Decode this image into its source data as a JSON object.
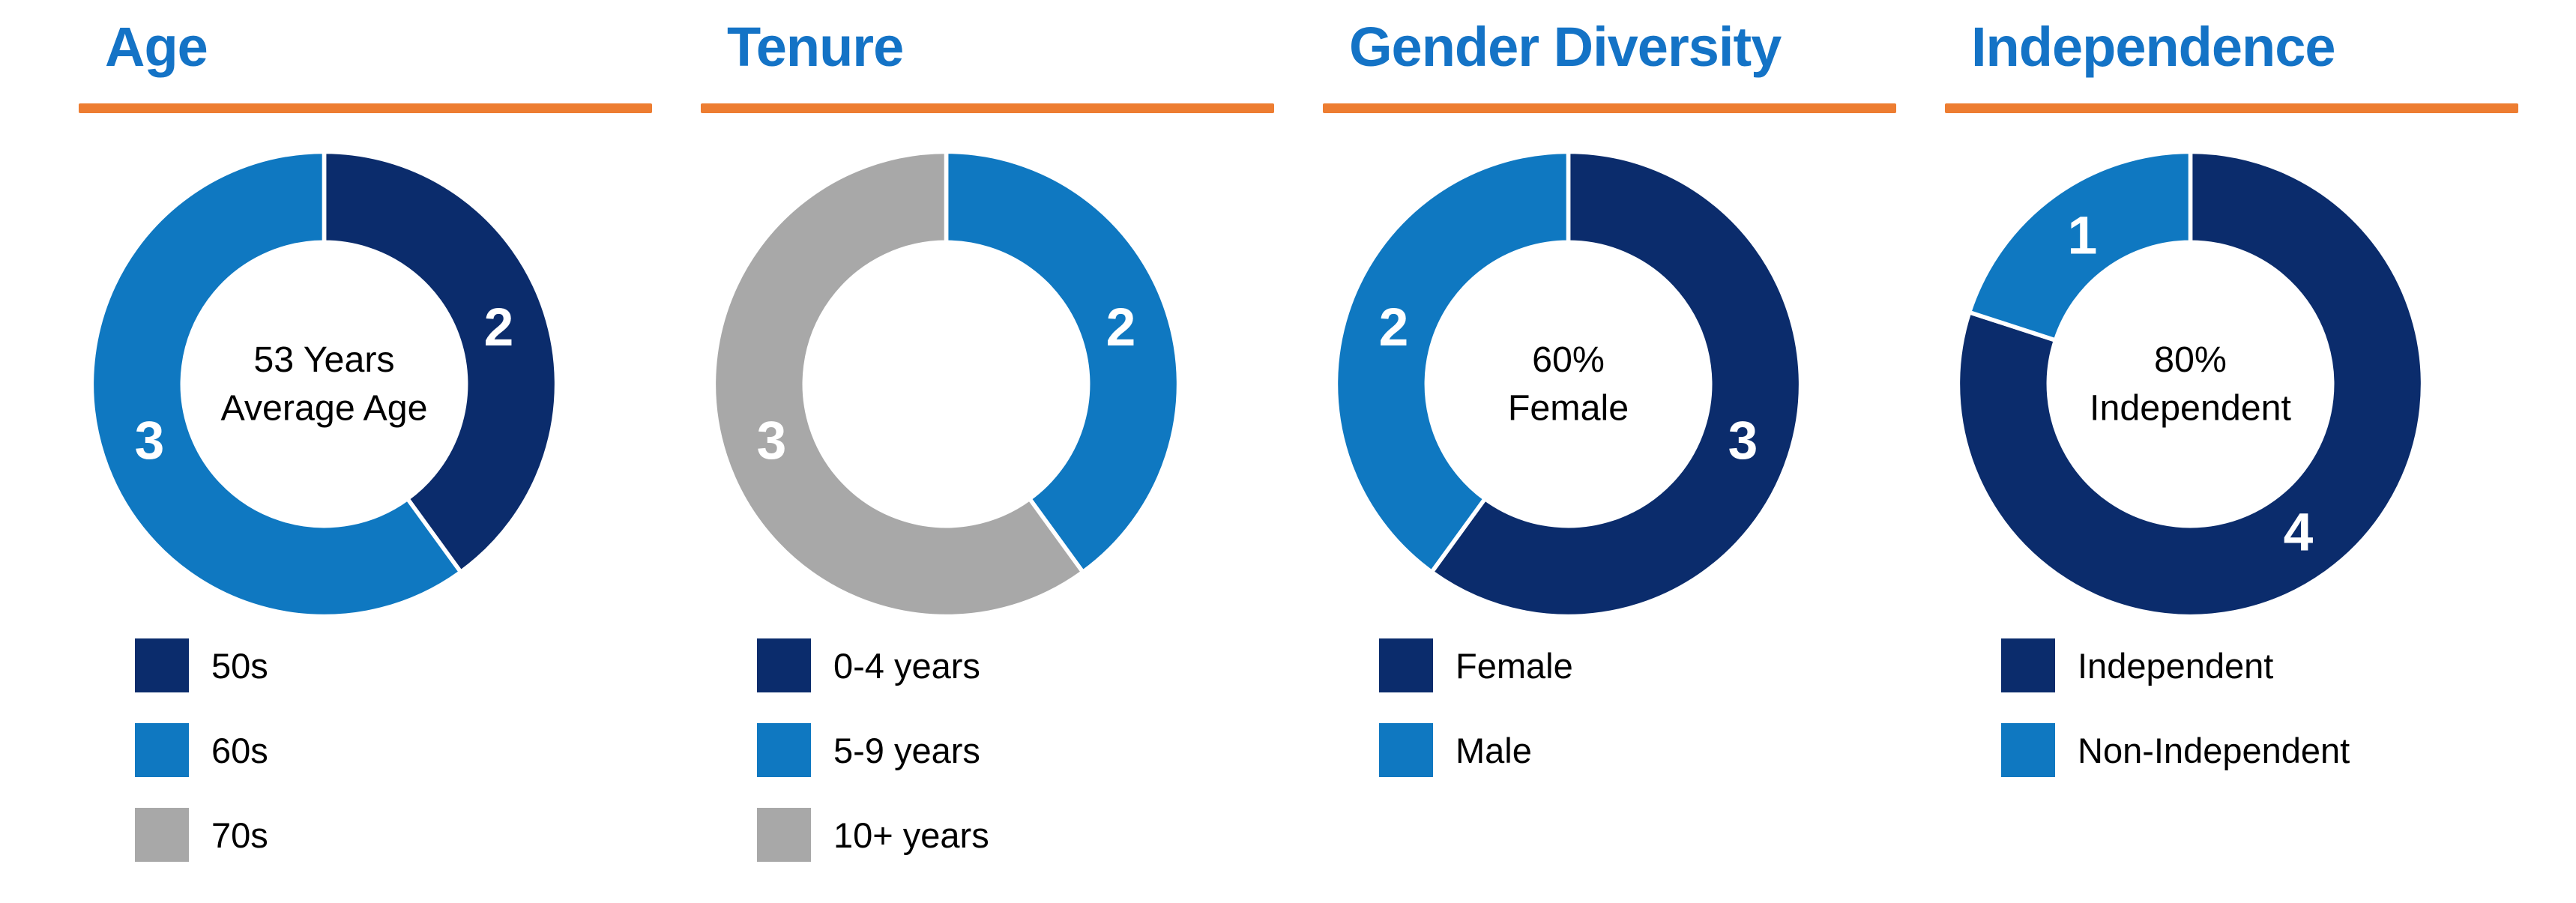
{
  "page": {
    "background": "#FFFFFF"
  },
  "palette": {
    "title_blue": "#1473C6",
    "underline_orange": "#ED7D31",
    "navy": "#0B2C6C",
    "blue": "#0F78C1",
    "gray": "#A8A8A8",
    "slice_label_color": "#FFFFFF",
    "center_text_color": "#000000",
    "legend_text_color": "#000000"
  },
  "chart_data": [
    {
      "type": "pie",
      "subtype": "donut",
      "title": "Age",
      "center_lines": [
        "53 Years",
        "Average Age"
      ],
      "categories": [
        "50s",
        "60s",
        "70s"
      ],
      "values": [
        2,
        3,
        0
      ],
      "colors": [
        "navy",
        "blue",
        "gray"
      ],
      "slice_labels": [
        "2",
        "3",
        ""
      ],
      "start_angle_deg": 0,
      "direction": "clockwise",
      "legend_position": "bottom-left"
    },
    {
      "type": "pie",
      "subtype": "donut",
      "title": "Tenure",
      "center_lines": [],
      "categories": [
        "0-4 years",
        "5-9 years",
        "10+ years"
      ],
      "values": [
        0,
        2,
        3
      ],
      "colors": [
        "navy",
        "blue",
        "gray"
      ],
      "slice_labels": [
        "",
        "2",
        "3"
      ],
      "start_angle_deg": 0,
      "direction": "clockwise",
      "legend_position": "bottom-left"
    },
    {
      "type": "pie",
      "subtype": "donut",
      "title": "Gender Diversity",
      "center_lines": [
        "60%",
        "Female"
      ],
      "categories": [
        "Female",
        "Male"
      ],
      "values": [
        3,
        2
      ],
      "colors": [
        "navy",
        "blue"
      ],
      "slice_labels": [
        "3",
        "2"
      ],
      "start_angle_deg": 0,
      "direction": "clockwise",
      "legend_position": "bottom-left"
    },
    {
      "type": "pie",
      "subtype": "donut",
      "title": "Independence",
      "center_lines": [
        "80%",
        "Independent"
      ],
      "categories": [
        "Independent",
        "Non-Independent"
      ],
      "values": [
        4,
        1
      ],
      "colors": [
        "navy",
        "blue"
      ],
      "slice_labels": [
        "4",
        "1"
      ],
      "start_angle_deg": 0,
      "direction": "clockwise",
      "legend_position": "bottom-left"
    }
  ]
}
